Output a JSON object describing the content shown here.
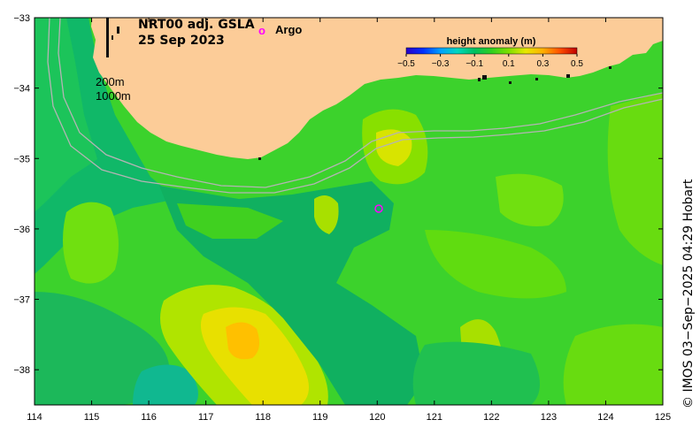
{
  "title": {
    "product": "NRT00 adj. GSLA",
    "date": "25 Sep 2023"
  },
  "argo_legend": {
    "symbol": "o",
    "label": "Argo",
    "color": "#ff00ff"
  },
  "isobath_labels": [
    "200m",
    "1000m"
  ],
  "colorbar": {
    "title": "height anomaly (m)",
    "ticks": [
      "−0.5",
      "−0.3",
      "−0.1",
      "0.1",
      "0.3",
      "0.5"
    ],
    "colors": [
      "#2a00c8",
      "#0030ff",
      "#00a0ff",
      "#00d8c0",
      "#00c060",
      "#30d020",
      "#80e000",
      "#e8e800",
      "#ffb000",
      "#ff5000",
      "#c00000"
    ]
  },
  "axes": {
    "x_ticks": [
      "114",
      "115",
      "116",
      "117",
      "118",
      "119",
      "120",
      "121",
      "122",
      "123",
      "124",
      "125"
    ],
    "y_ticks": [
      "−33",
      "−34",
      "−35",
      "−36",
      "−37",
      "−38"
    ],
    "xlim": [
      114,
      125
    ],
    "ylim": [
      -38.5,
      -33
    ]
  },
  "credit": "© IMOS 03−Sep−2025 04:29 Hobart",
  "colors": {
    "land": "#fccc98",
    "sea_base": "#3cd22c",
    "isobath": "#b4b4b4"
  }
}
